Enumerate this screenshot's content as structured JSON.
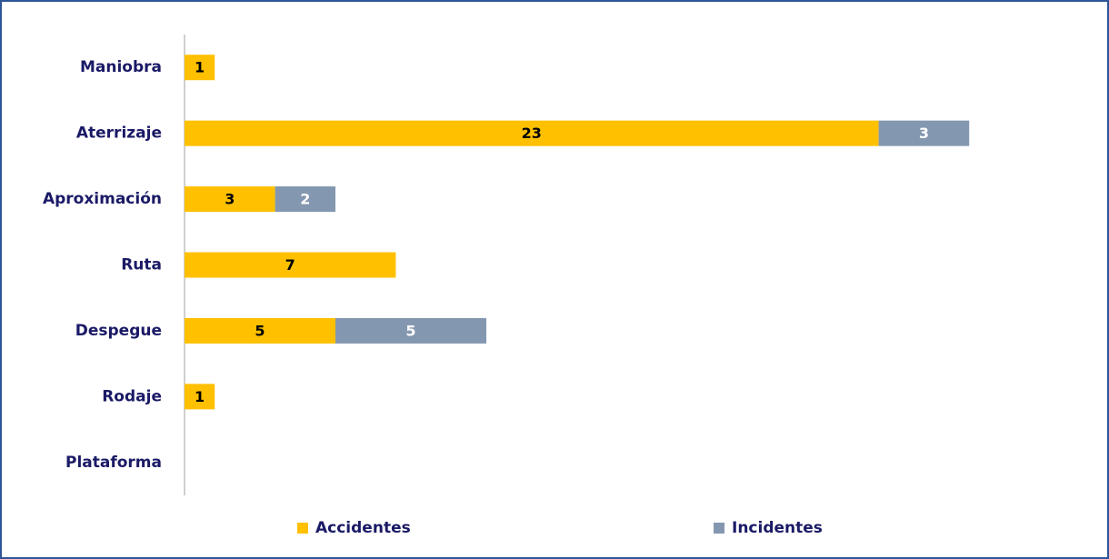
{
  "chart_data": {
    "type": "stacked-bar-horizontal",
    "categories": [
      "Maniobra",
      "Aterrizaje",
      "Aproximación",
      "Ruta",
      "Despegue",
      "Rodaje",
      "Plataforma"
    ],
    "series": [
      {
        "name": "Accidentes",
        "color": "#ffc000",
        "values": [
          1,
          23,
          3,
          7,
          5,
          1,
          null
        ]
      },
      {
        "name": "Incidentes",
        "color": "#8497b0",
        "values": [
          null,
          3,
          2,
          null,
          5,
          null,
          null
        ]
      }
    ],
    "xlim": [
      0,
      30
    ],
    "legend": "bottom"
  }
}
